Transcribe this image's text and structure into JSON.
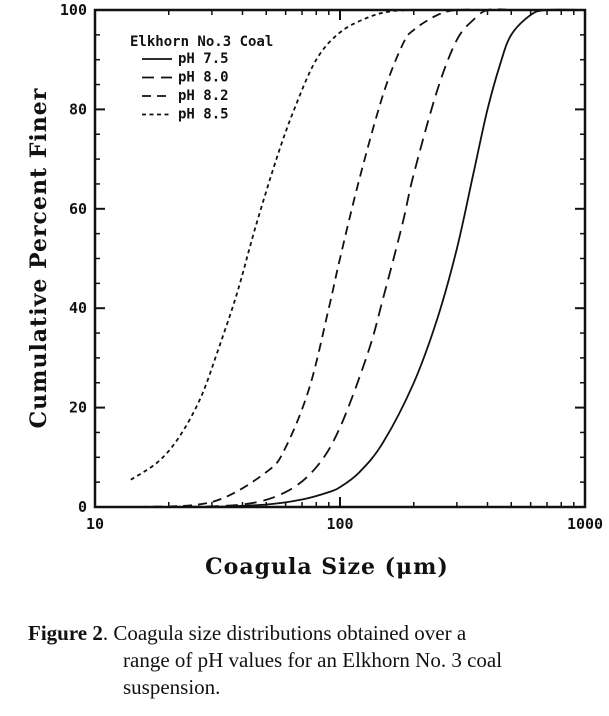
{
  "chart_data": {
    "type": "line",
    "title": "Elkhorn No.3 Coal",
    "xlabel": "Coagula Size (μm)",
    "ylabel": "Cumulative Percent Finer",
    "xscale": "log",
    "xlim": [
      10,
      1000
    ],
    "ylim": [
      0,
      100
    ],
    "x_ticks": [
      10,
      100,
      1000
    ],
    "x_tick_labels": [
      "10",
      "100",
      "1000"
    ],
    "y_ticks": [
      0,
      20,
      40,
      60,
      80,
      100
    ],
    "y_tick_labels": [
      "0",
      "20",
      "40",
      "60",
      "80",
      "100"
    ],
    "grid": false,
    "legend_position": "top-left",
    "series": [
      {
        "name": "pH 7.5",
        "dash": "solid",
        "x": [
          30,
          50,
          70,
          90,
          100,
          120,
          150,
          200,
          250,
          300,
          350,
          400,
          450,
          500,
          600,
          700,
          1000
        ],
        "y": [
          0,
          0.5,
          1.5,
          3,
          4,
          7,
          13,
          25,
          38,
          52,
          67,
          80,
          89,
          95,
          99,
          100,
          100
        ]
      },
      {
        "name": "pH 8.0",
        "dash": "long-dash",
        "x": [
          20,
          40,
          60,
          80,
          100,
          130,
          150,
          180,
          200,
          250,
          300,
          350,
          400,
          500
        ],
        "y": [
          0,
          0.5,
          3,
          8,
          16,
          31,
          42,
          57,
          67,
          84,
          94,
          98,
          100,
          100
        ]
      },
      {
        "name": "pH 8.2",
        "dash": "dash",
        "x": [
          15,
          30,
          50,
          60,
          75,
          90,
          100,
          120,
          150,
          180,
          200,
          250,
          300,
          400
        ],
        "y": [
          0,
          1,
          7,
          12,
          24,
          40,
          50,
          66,
          83,
          93,
          96,
          99,
          100,
          100
        ]
      },
      {
        "name": "pH 8.5",
        "dash": "short-dash",
        "x": [
          14,
          18,
          22,
          27,
          32,
          38,
          45,
          55,
          65,
          80,
          100,
          130,
          160,
          200,
          250
        ],
        "y": [
          5.5,
          9,
          14,
          22,
          32,
          43,
          56,
          70,
          80,
          90,
          95.5,
          98.5,
          99.7,
          100,
          100
        ]
      }
    ]
  },
  "caption": {
    "figure_label": "Figure 2",
    "line1": ". Coagula size distributions obtained over a",
    "line2": "range of pH values for an Elkhorn No. 3 coal",
    "line3": "suspension."
  }
}
